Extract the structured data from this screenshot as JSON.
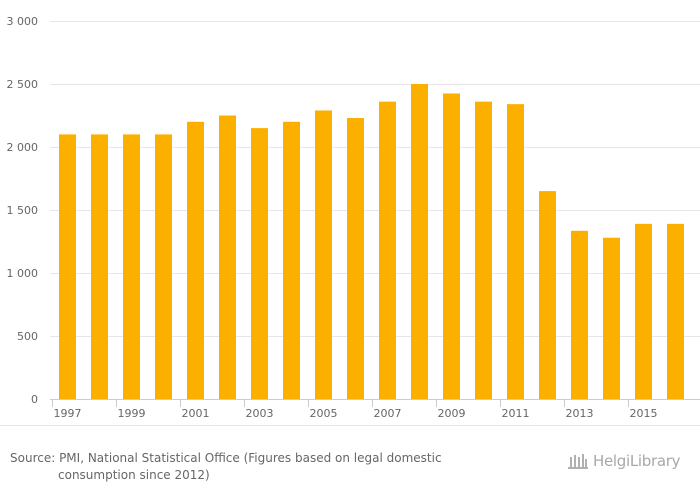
{
  "chart_data": {
    "type": "bar",
    "categories": [
      "1997",
      "1998",
      "1999",
      "2000",
      "2001",
      "2002",
      "2003",
      "2004",
      "2005",
      "2006",
      "2007",
      "2008",
      "2009",
      "2010",
      "2011",
      "2012",
      "2013",
      "2014",
      "2015",
      "2016"
    ],
    "values": [
      2100,
      2100,
      2100,
      2100,
      2200,
      2250,
      2150,
      2200,
      2290,
      2230,
      2360,
      2500,
      2425,
      2360,
      2340,
      1650,
      1335,
      1280,
      1390,
      1390
    ],
    "x_tick_labels": [
      "1997",
      "",
      "1999",
      "",
      "2001",
      "",
      "2003",
      "",
      "2005",
      "",
      "2007",
      "",
      "2009",
      "",
      "2011",
      "",
      "2013",
      "",
      "2015",
      ""
    ],
    "y_ticks": [
      0,
      500,
      1000,
      1500,
      2000,
      2500,
      3000
    ],
    "y_tick_labels": [
      "0",
      "500",
      "1 000",
      "1 500",
      "2 000",
      "2 500",
      "3 000"
    ],
    "ylim": [
      0,
      3000
    ],
    "title": "",
    "xlabel": "",
    "ylabel": "",
    "grid": true,
    "bar_color": "#fbb000"
  },
  "footer": {
    "source_line1": "Source: PMI, National Statistical Office (Figures based on legal domestic",
    "source_line2": "consumption since 2012)",
    "brand": "HelgiLibrary",
    "brand_icon": "helgi-library-logo-icon"
  }
}
